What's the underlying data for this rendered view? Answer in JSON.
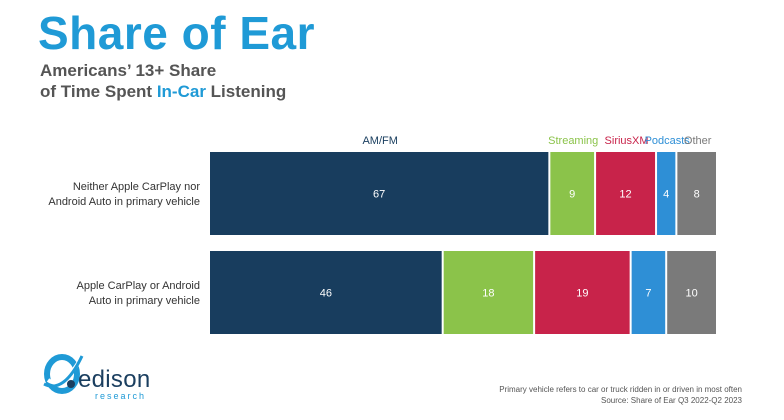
{
  "title": "Share of Ear",
  "subtitle": {
    "line1": "Americans’ 13+ Share",
    "line2_prefix": "of Time Spent ",
    "line2_highlight": "In-Car",
    "line2_suffix": " Listening"
  },
  "colors": {
    "title": "#1f9ad6",
    "AM/FM": "#183d5e",
    "Streaming": "#8bc34a",
    "SiriusXM": "#c8234a",
    "Podcasts": "#2e8fd6",
    "Other": "#7a7a7a"
  },
  "chart_data": {
    "type": "bar",
    "orientation": "horizontal",
    "stacked": true,
    "categories": [
      [
        "Neither Apple CarPlay nor",
        "Android Auto in primary vehicle"
      ],
      [
        "Apple CarPlay or Android",
        "Auto in primary vehicle"
      ]
    ],
    "series": [
      {
        "name": "AM/FM",
        "values": [
          67,
          46
        ]
      },
      {
        "name": "Streaming",
        "values": [
          9,
          18
        ]
      },
      {
        "name": "SiriusXM",
        "values": [
          12,
          19
        ]
      },
      {
        "name": "Podcasts",
        "values": [
          4,
          7
        ]
      },
      {
        "name": "Other",
        "values": [
          8,
          10
        ]
      }
    ],
    "xlim": [
      0,
      100
    ],
    "grid": false,
    "legend": "top"
  },
  "logo": {
    "name": "edison",
    "sub": "research"
  },
  "footnote": {
    "line1": "Primary vehicle refers to car or truck ridden in or driven in most often",
    "line2": "Source: Share of Ear Q3 2022-Q2 2023"
  }
}
